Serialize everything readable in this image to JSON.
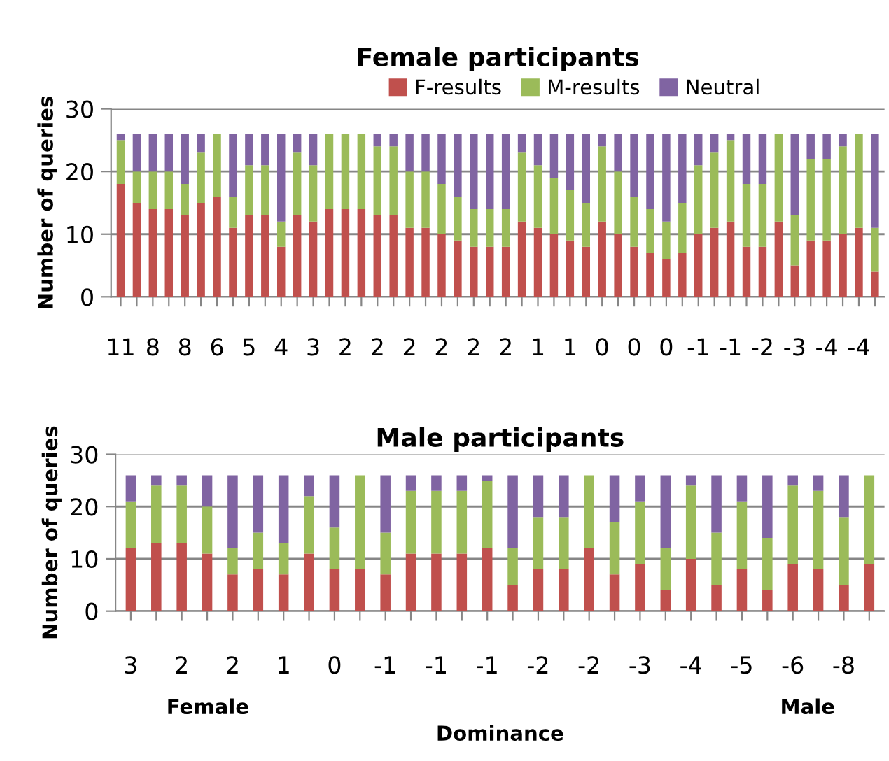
{
  "chart_data": [
    {
      "type": "bar",
      "stacked": true,
      "title": "Female participants",
      "ylabel": "Number of queries",
      "ylim": [
        0,
        30
      ],
      "yticks": [
        0,
        10,
        20,
        30
      ],
      "grid": "y",
      "legend": "top",
      "categories": [
        "11",
        null,
        "8",
        null,
        "8",
        null,
        "6",
        null,
        "5",
        null,
        "4",
        null,
        "3",
        null,
        "2",
        null,
        "2",
        null,
        "2",
        null,
        "2",
        null,
        "2",
        null,
        "2",
        null,
        "1",
        null,
        "1",
        null,
        "0",
        null,
        "0",
        null,
        "0",
        null,
        "-1",
        null,
        "-1",
        null,
        "-2",
        null,
        "-3",
        null,
        "-4",
        null,
        "-4",
        null
      ],
      "series": [
        {
          "name": "F-results",
          "color": "#c0504d",
          "values": [
            18,
            15,
            14,
            14,
            13,
            15,
            16,
            11,
            13,
            13,
            8,
            13,
            12,
            14,
            14,
            14,
            13,
            13,
            11,
            11,
            10,
            9,
            8,
            8,
            8,
            12,
            11,
            10,
            9,
            8,
            12,
            10,
            8,
            7,
            6,
            7,
            10,
            11,
            12,
            8,
            8,
            12,
            5,
            9,
            9,
            10,
            11,
            4
          ]
        },
        {
          "name": "M-results",
          "color": "#9bbb59",
          "values": [
            7,
            5,
            6,
            6,
            5,
            8,
            10,
            5,
            8,
            8,
            4,
            10,
            9,
            12,
            12,
            12,
            11,
            11,
            9,
            9,
            8,
            7,
            6,
            6,
            6,
            11,
            10,
            9,
            8,
            7,
            12,
            10,
            8,
            7,
            6,
            8,
            11,
            12,
            13,
            10,
            10,
            14,
            8,
            13,
            13,
            14,
            15,
            7
          ]
        },
        {
          "name": "Neutral",
          "color": "#8064a2",
          "values": [
            1,
            6,
            6,
            6,
            8,
            3,
            0,
            10,
            5,
            5,
            14,
            3,
            5,
            0,
            0,
            0,
            2,
            2,
            6,
            6,
            8,
            10,
            12,
            12,
            12,
            3,
            5,
            7,
            9,
            11,
            2,
            6,
            10,
            12,
            14,
            11,
            5,
            3,
            1,
            8,
            8,
            0,
            13,
            4,
            4,
            2,
            0,
            15
          ]
        }
      ]
    },
    {
      "type": "bar",
      "stacked": true,
      "title": "Male participants",
      "ylabel": "Number of queries",
      "xlabel": "Dominance",
      "ylim": [
        0,
        30
      ],
      "yticks": [
        0,
        10,
        20,
        30
      ],
      "grid": "y",
      "annotations": [
        "Female",
        "Male"
      ],
      "categories": [
        "3",
        null,
        "2",
        null,
        "2",
        null,
        "1",
        null,
        "0",
        null,
        "-1",
        null,
        "-1",
        null,
        "-1",
        null,
        "-2",
        null,
        "-2",
        null,
        "-3",
        null,
        "-4",
        null,
        "-5",
        null,
        "-6",
        null,
        "-8",
        null
      ],
      "series": [
        {
          "color": "#c0504d",
          "values": [
            12,
            13,
            13,
            11,
            7,
            8,
            7,
            11,
            8,
            8,
            7,
            11,
            11,
            11,
            12,
            5,
            8,
            8,
            12,
            7,
            9,
            4,
            10,
            5,
            8,
            4,
            9,
            8,
            5,
            9
          ]
        },
        {
          "color": "#9bbb59",
          "values": [
            9,
            11,
            11,
            9,
            5,
            7,
            6,
            11,
            8,
            18,
            8,
            12,
            12,
            12,
            13,
            7,
            10,
            10,
            14,
            10,
            12,
            8,
            14,
            10,
            13,
            10,
            15,
            15,
            13,
            17
          ]
        },
        {
          "color": "#8064a2",
          "values": [
            5,
            2,
            2,
            6,
            14,
            11,
            13,
            4,
            10,
            0,
            11,
            3,
            3,
            3,
            1,
            14,
            8,
            8,
            0,
            9,
            5,
            14,
            2,
            11,
            5,
            12,
            2,
            3,
            8,
            0
          ]
        }
      ]
    }
  ]
}
